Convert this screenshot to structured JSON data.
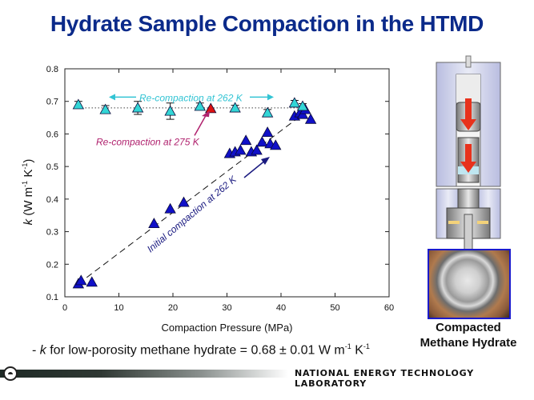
{
  "slide": {
    "title": "Hydrate Sample Compaction in the HTMD",
    "bullet": {
      "prefix": "- ",
      "symbol": "k",
      "text": " for low-porosity methane hydrate = 0.68 ± 0.01 W m",
      "exp1": "-1",
      "mid": " K",
      "exp2": "-1"
    },
    "photo_caption_line1": "Compacted",
    "photo_caption_line2": "Methane Hydrate",
    "footer": "NATIONAL ENERGY TECHNOLOGY LABORATORY",
    "colors": {
      "title": "#0b2a8a",
      "initial": "#1010c8",
      "recompaction_262": "#33d6d6",
      "recompaction_275": "#dd1111",
      "annotation_275": "#b0226e",
      "annotation_initial": "#1a1a80"
    }
  },
  "chart_data": {
    "type": "scatter",
    "title": "",
    "xlabel": "Compaction Pressure (MPa)",
    "ylabel": "k (W m-1 K-1)",
    "xlim": [
      0,
      60
    ],
    "ylim": [
      0.1,
      0.8
    ],
    "xticks": [
      0,
      10,
      20,
      30,
      40,
      50,
      60
    ],
    "yticks": [
      0.1,
      0.2,
      0.3,
      0.4,
      0.5,
      0.6,
      0.7,
      0.8
    ],
    "grid": false,
    "series": [
      {
        "name": "Initial compaction at 262 K",
        "marker": "triangle",
        "color": "#1010c8",
        "points": [
          [
            2.5,
            0.14
          ],
          [
            3.0,
            0.15
          ],
          [
            5.0,
            0.145
          ],
          [
            16.5,
            0.325
          ],
          [
            19.5,
            0.37
          ],
          [
            22.0,
            0.39
          ],
          [
            30.5,
            0.54
          ],
          [
            31.5,
            0.545
          ],
          [
            32.5,
            0.55
          ],
          [
            33.5,
            0.58
          ],
          [
            34.5,
            0.545
          ],
          [
            35.5,
            0.55
          ],
          [
            36.5,
            0.575
          ],
          [
            37.5,
            0.605
          ],
          [
            38.0,
            0.57
          ],
          [
            39.0,
            0.565
          ],
          [
            42.5,
            0.655
          ],
          [
            43.5,
            0.665
          ],
          [
            44.0,
            0.66
          ],
          [
            44.5,
            0.675
          ],
          [
            45.5,
            0.645
          ]
        ]
      },
      {
        "name": "Re-compaction at 262 K",
        "marker": "triangle",
        "color": "#33d6d6",
        "points": [
          [
            2.5,
            0.69,
            0.01
          ],
          [
            7.5,
            0.675,
            0.012
          ],
          [
            13.5,
            0.68,
            0.02
          ],
          [
            19.5,
            0.67,
            0.025
          ],
          [
            25.0,
            0.685,
            0.01
          ],
          [
            31.5,
            0.68,
            0.008
          ],
          [
            37.5,
            0.665,
            0.01
          ],
          [
            42.5,
            0.695,
            0.008
          ],
          [
            44.0,
            0.685,
            0.008
          ]
        ]
      },
      {
        "name": "Re-compaction at 275 K",
        "marker": "triangle",
        "color": "#dd1111",
        "points": [
          [
            27.0,
            0.678
          ]
        ]
      }
    ],
    "reference_lines": [
      {
        "type": "dotted-horizontal",
        "y": 0.68,
        "x_range": [
          2,
          45
        ]
      },
      {
        "type": "dashed-fit",
        "from": [
          2.5,
          0.14
        ],
        "to": [
          44,
          0.66
        ]
      }
    ],
    "annotations": [
      {
        "text": "Re-compaction at 262 K",
        "color": "#33c4d4",
        "arrows": "both"
      },
      {
        "text": "Re-compaction at 275 K",
        "color": "#b0226e",
        "arrow_to": [
          27.0,
          0.678
        ]
      },
      {
        "text": "Initial compaction at 262 K",
        "color": "#1a1a80",
        "rotated": true
      }
    ]
  }
}
